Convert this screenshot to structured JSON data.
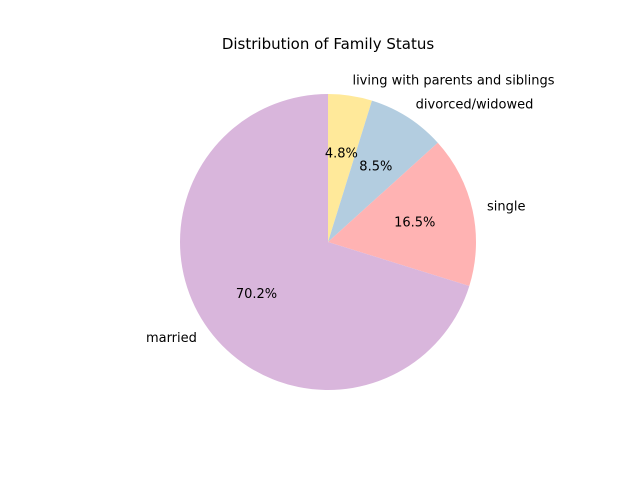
{
  "chart_data": {
    "type": "pie",
    "title": "Distribution of Family Status",
    "slices": [
      {
        "label": "living with parents and siblings",
        "value": 4.8,
        "pct_label": "4.8%",
        "color": "#ffe99a"
      },
      {
        "label": "divorced/widowed",
        "value": 8.5,
        "pct_label": "8.5%",
        "color": "#b3cde0"
      },
      {
        "label": "single",
        "value": 16.5,
        "pct_label": "16.5%",
        "color": "#ffb3b3"
      },
      {
        "label": "married",
        "value": 70.2,
        "pct_label": "70.2%",
        "color": "#d9b6dc"
      }
    ],
    "start_angle": 90,
    "direction": "clockwise",
    "legend": "none"
  }
}
